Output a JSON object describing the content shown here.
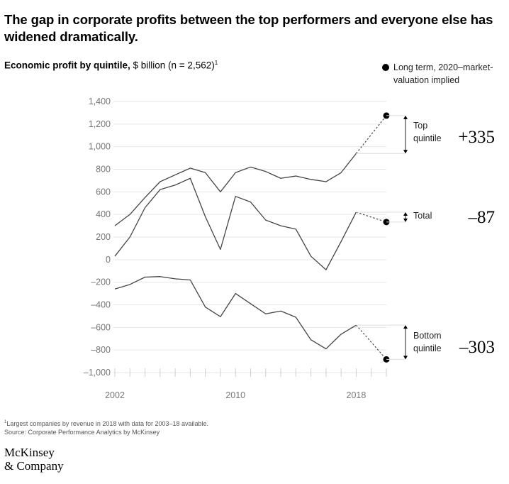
{
  "headline": "The gap in corporate profits between the top performers and everyone else has widened dramatically.",
  "subtitle": {
    "bold": "Economic profit by quintile,",
    "rest": " $ billion (n = 2,562)",
    "sup": "1"
  },
  "legend": {
    "marker_label": "Long term, 2020–market-valuation implied"
  },
  "chart_data": {
    "type": "line",
    "ylim": [
      -1000,
      1400
    ],
    "yticks": [
      -1000,
      -800,
      -600,
      -400,
      -200,
      0,
      200,
      400,
      600,
      800,
      1000,
      1200,
      1400
    ],
    "ytick_labels": [
      "–1,000",
      "–800",
      "–600",
      "–400",
      "–200",
      "0",
      "200",
      "400",
      "600",
      "800",
      "1,000",
      "1,200",
      "1,400"
    ],
    "x": [
      2002,
      2003,
      2004,
      2005,
      2006,
      2007,
      2008,
      2009,
      2010,
      2011,
      2012,
      2013,
      2014,
      2015,
      2016,
      2017,
      2018
    ],
    "xtick_labels": [
      "2002",
      "2010",
      "2018"
    ],
    "projection_x": 2020,
    "series": [
      {
        "name": "Top quintile",
        "values": [
          300,
          400,
          550,
          690,
          750,
          810,
          770,
          600,
          770,
          820,
          780,
          720,
          740,
          710,
          690,
          770,
          940
        ],
        "projection": 1275,
        "delta": "+335",
        "label_lines": [
          "Top",
          "quintile"
        ]
      },
      {
        "name": "Total",
        "values": [
          30,
          200,
          460,
          620,
          660,
          720,
          380,
          90,
          560,
          510,
          350,
          300,
          270,
          30,
          -90,
          160,
          420
        ],
        "projection": 333,
        "delta": "–87",
        "label_lines": [
          "Total"
        ]
      },
      {
        "name": "Bottom quintile",
        "values": [
          -260,
          -220,
          -155,
          -150,
          -170,
          -180,
          -420,
          -505,
          -300,
          -390,
          -480,
          -455,
          -510,
          -710,
          -790,
          -660,
          -580
        ],
        "projection": -883,
        "delta": "–303",
        "label_lines": [
          "Bottom",
          "quintile"
        ]
      }
    ],
    "grid": true
  },
  "footnote": {
    "sup": "1",
    "line1": "Largest companies by revenue in 2018 with data for 2003–18 available.",
    "line2": "Source: Corporate Performance Analytics by McKinsey"
  },
  "logo": {
    "line1": "McKinsey",
    "line2": "& Company"
  }
}
